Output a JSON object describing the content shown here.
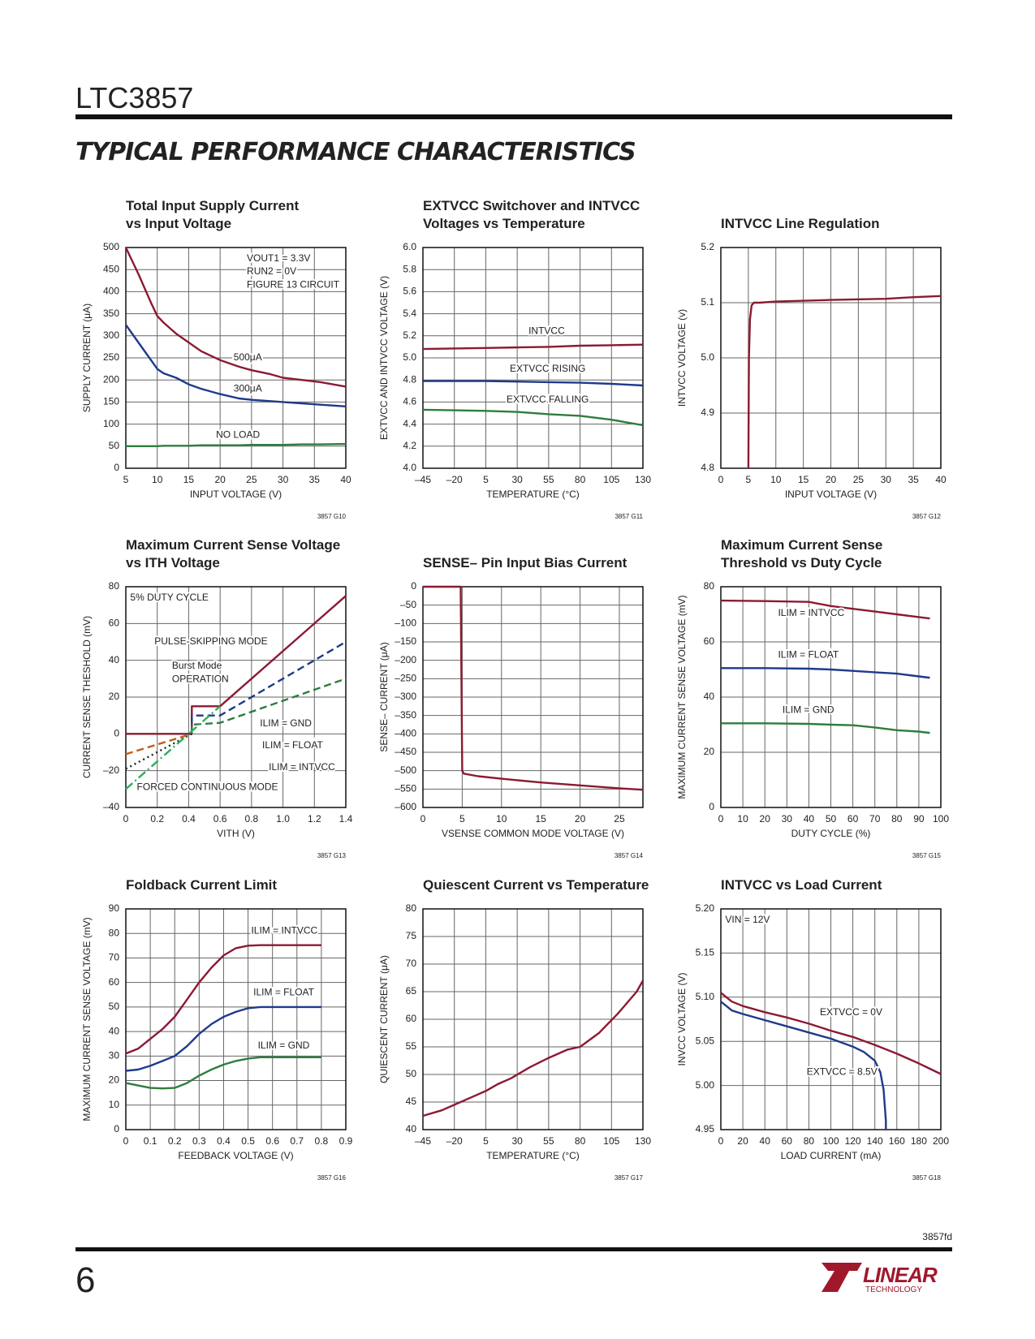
{
  "header": {
    "part": "LTC3857",
    "section": "TYPICAL PERFORMANCE CHARACTERISTICS"
  },
  "chart_data": [
    {
      "type": "line",
      "title": [
        "Total Input Supply Current",
        "vs Input Voltage"
      ],
      "xlabel": "INPUT VOLTAGE (V)",
      "ylabel": "SUPPLY CURRENT (μA)",
      "code": "3857 G10",
      "xlim": [
        5,
        40
      ],
      "xticks": [
        5,
        10,
        15,
        20,
        25,
        30,
        35,
        40
      ],
      "ylim": [
        0,
        500
      ],
      "yticks": [
        0,
        50,
        100,
        150,
        200,
        250,
        300,
        350,
        400,
        450,
        500
      ],
      "grid": true,
      "notes": [
        "VOUT1 = 3.3V",
        "RUN2 = 0V",
        "FIGURE 13 CIRCUIT"
      ],
      "x": [
        5,
        7,
        9,
        10,
        11,
        13,
        15,
        17,
        20,
        23,
        25,
        28,
        30,
        33,
        36,
        40
      ],
      "series": [
        {
          "name": "500μA",
          "color": "#8b1a33",
          "values": [
            500,
            440,
            375,
            345,
            330,
            305,
            285,
            265,
            245,
            230,
            222,
            213,
            205,
            200,
            195,
            185
          ]
        },
        {
          "name": "300μA",
          "color": "#1e3a8a",
          "values": [
            325,
            285,
            245,
            225,
            215,
            205,
            190,
            180,
            168,
            158,
            155,
            152,
            150,
            147,
            144,
            140
          ]
        },
        {
          "name": "NO LOAD",
          "color": "#2e7d3e",
          "values": [
            50,
            50,
            50,
            50,
            51,
            51,
            51,
            52,
            52,
            52,
            53,
            53,
            53,
            54,
            54,
            55
          ]
        }
      ]
    },
    {
      "type": "line",
      "title": [
        "EXTVCC Switchover and INTVCC",
        "Voltages vs Temperature"
      ],
      "xlabel": "TEMPERATURE (°C)",
      "ylabel": "EXTVCC AND INTVCC VOLTAGE (V)",
      "code": "3857 G11",
      "xlim": [
        -45,
        130
      ],
      "xticks": [
        {
          "value": -45,
          "label": "–45"
        },
        {
          "value": -20,
          "label": "–20"
        },
        5,
        30,
        55,
        80,
        105,
        130
      ],
      "ylim": [
        4,
        6
      ],
      "yticks": [
        {
          "value": 4,
          "label": "4.0"
        },
        4.2,
        4.4,
        4.6,
        4.8,
        {
          "value": 5,
          "label": "5.0"
        },
        5.2,
        5.4,
        5.6,
        5.8,
        {
          "value": 6,
          "label": "6.0"
        }
      ],
      "grid": true,
      "x": [
        -45,
        -20,
        5,
        30,
        55,
        80,
        105,
        130
      ],
      "series": [
        {
          "name": "INTVCC",
          "color": "#8b1a33",
          "values": [
            5.08,
            5.085,
            5.09,
            5.095,
            5.1,
            5.11,
            5.115,
            5.12
          ]
        },
        {
          "name": "EXTVCC RISING",
          "color": "#1e3a8a",
          "values": [
            4.79,
            4.79,
            4.79,
            4.785,
            4.78,
            4.775,
            4.765,
            4.75
          ]
        },
        {
          "name": "EXTVCC FALLING",
          "color": "#2e7d3e",
          "values": [
            4.53,
            4.525,
            4.52,
            4.51,
            4.49,
            4.475,
            4.44,
            4.39
          ]
        }
      ]
    },
    {
      "type": "line",
      "title": [
        "INTVCC Line Regulation"
      ],
      "xlabel": "INPUT VOLTAGE (V)",
      "ylabel": "INTVCC VOLTAGE (v)",
      "code": "3857 G12",
      "xlim": [
        0,
        40
      ],
      "xticks": [
        0,
        5,
        10,
        15,
        20,
        25,
        30,
        35,
        40
      ],
      "ylim": [
        4.8,
        5.2
      ],
      "yticks": [
        4.8,
        4.9,
        {
          "value": 5,
          "label": "5.0"
        },
        5.1,
        5.2
      ],
      "grid": true,
      "x": [
        5,
        5.1,
        5.3,
        5.6,
        6,
        7,
        10,
        20,
        30,
        35,
        40
      ],
      "series": [
        {
          "color": "#8b1a33",
          "values": [
            4.8,
            5.0,
            5.07,
            5.095,
            5.1,
            5.1,
            5.102,
            5.105,
            5.107,
            5.11,
            5.112
          ]
        }
      ]
    },
    {
      "type": "line",
      "title": [
        "Maximum Current Sense Voltage",
        "vs ITH Voltage"
      ],
      "xlabel": "VITH (V)",
      "ylabel": "CURRENT SENSE THESHOLD (mV)",
      "code": "3857 G13",
      "xlim": [
        0,
        1.4
      ],
      "xticks": [
        0,
        0.2,
        0.4,
        0.6,
        0.8,
        {
          "value": 1,
          "label": "1.0"
        },
        1.2,
        1.4
      ],
      "ylim": [
        -40,
        80
      ],
      "yticks": [
        {
          "value": -40,
          "label": "–40"
        },
        {
          "value": -20,
          "label": "–20"
        },
        0,
        20,
        40,
        60,
        80
      ],
      "grid": true,
      "notes": [
        "5% DUTY CYCLE",
        "PULSE-SKIPPING MODE",
        "Burst Mode",
        "OPERATION",
        "FORCED CONTINUOUS MODE"
      ],
      "series": [
        {
          "name": "ILIM = INTVCC",
          "color": "#8b1a33",
          "x": [
            0,
            0.42,
            0.42,
            0.6,
            1.4
          ],
          "values": [
            0,
            0,
            15,
            15,
            75
          ]
        },
        {
          "name": "ILIM = FLOAT",
          "color": "#1e3a8a",
          "dash": "dashed",
          "x": [
            0.42,
            0.42,
            0.6,
            1.4
          ],
          "values": [
            0,
            10,
            10,
            50
          ]
        },
        {
          "name": "ILIM = GND",
          "color": "#2e7d3e",
          "dash": "dashed",
          "x": [
            0.42,
            0.42,
            0.6,
            1.4
          ],
          "values": [
            0,
            5,
            6,
            30
          ]
        },
        {
          "color": "#c0601a",
          "dash": "dashed",
          "x": [
            0,
            0.42
          ],
          "values": [
            -11,
            0
          ]
        },
        {
          "color": "#222222",
          "dash": "dotted",
          "x": [
            0,
            0.42
          ],
          "values": [
            -19,
            0
          ]
        },
        {
          "color": "#2eae5e",
          "dash": "dashdot",
          "x": [
            0,
            0.6
          ],
          "values": [
            -30,
            15
          ]
        }
      ]
    },
    {
      "type": "line",
      "title": [
        "SENSE– Pin Input Bias Current"
      ],
      "xlabel": "VSENSE COMMON MODE VOLTAGE (V)",
      "ylabel": "SENSE– CURRENT (μA)",
      "code": "3857 G14",
      "xlim": [
        0,
        28
      ],
      "xticks": [
        0,
        5,
        10,
        15,
        20,
        25
      ],
      "ylim": [
        -600,
        0
      ],
      "yticks": [
        0,
        {
          "value": -50,
          "label": "–50"
        },
        {
          "value": -100,
          "label": "–100"
        },
        {
          "value": -150,
          "label": "–150"
        },
        {
          "value": -200,
          "label": "–200"
        },
        {
          "value": -250,
          "label": "–250"
        },
        {
          "value": -300,
          "label": "–300"
        },
        {
          "value": -350,
          "label": "–350"
        },
        {
          "value": -400,
          "label": "–400"
        },
        {
          "value": -450,
          "label": "–450"
        },
        {
          "value": -500,
          "label": "–500"
        },
        {
          "value": -550,
          "label": "–550"
        },
        {
          "value": -600,
          "label": "–600"
        }
      ],
      "grid": true,
      "x": [
        0,
        4.8,
        5,
        5.2,
        7,
        10,
        15,
        20,
        25,
        28
      ],
      "series": [
        {
          "color": "#8b1a33",
          "values": [
            0,
            0,
            -500,
            -508,
            -515,
            -522,
            -532,
            -540,
            -548,
            -552
          ]
        }
      ]
    },
    {
      "type": "line",
      "title": [
        "Maximum Current Sense",
        "Threshold vs Duty Cycle"
      ],
      "xlabel": "DUTY CYCLE (%)",
      "ylabel": "MAXIMUM CURRENT SENSE VOLTAGE (mV)",
      "code": "3857 G15",
      "xlim": [
        0,
        100
      ],
      "xticks": [
        0,
        10,
        20,
        30,
        40,
        50,
        60,
        70,
        80,
        90,
        100
      ],
      "ylim": [
        0,
        80
      ],
      "yticks": [
        0,
        20,
        40,
        60,
        80
      ],
      "grid": true,
      "x": [
        0,
        20,
        40,
        50,
        60,
        70,
        80,
        90,
        95
      ],
      "series": [
        {
          "name": "ILIM = INTVCC",
          "color": "#8b1a33",
          "values": [
            75,
            74.8,
            74.5,
            73,
            72,
            71,
            70,
            69,
            68.5
          ]
        },
        {
          "name": "ILIM = FLOAT",
          "color": "#1e3a8a",
          "values": [
            50.5,
            50.5,
            50.3,
            50,
            49.5,
            49,
            48.5,
            47.5,
            47
          ]
        },
        {
          "name": "ILIM = GND",
          "color": "#2e7d3e",
          "values": [
            30.5,
            30.5,
            30.3,
            30,
            29.8,
            29,
            28,
            27.5,
            27
          ]
        }
      ]
    },
    {
      "type": "line",
      "title": [
        "Foldback Current Limit"
      ],
      "xlabel": "FEEDBACK VOLTAGE (V)",
      "ylabel": "MAXIMUM CURRENT SENSE VOLTAGE (mV)",
      "code": "3857 G16",
      "xlim": [
        0,
        0.9
      ],
      "xticks": [
        0,
        0.1,
        0.2,
        0.3,
        0.4,
        0.5,
        0.6,
        0.7,
        0.8,
        0.9
      ],
      "ylim": [
        0,
        90
      ],
      "yticks": [
        0,
        10,
        20,
        30,
        40,
        50,
        60,
        70,
        80,
        90
      ],
      "grid": true,
      "x": [
        0,
        0.05,
        0.1,
        0.15,
        0.2,
        0.25,
        0.3,
        0.35,
        0.4,
        0.45,
        0.5,
        0.55,
        0.6,
        0.7,
        0.8
      ],
      "series": [
        {
          "name": "ILIM = INTVCC",
          "color": "#8b1a33",
          "values": [
            31,
            33,
            37,
            41,
            46,
            53,
            60,
            66,
            71,
            74,
            75,
            75.2,
            75.2,
            75.2,
            75.2
          ]
        },
        {
          "name": "ILIM = FLOAT",
          "color": "#1e3a8a",
          "values": [
            24,
            24.5,
            26,
            28,
            30,
            34,
            39,
            43,
            46,
            48,
            49.5,
            50,
            50,
            50,
            50
          ]
        },
        {
          "name": "ILIM = GND",
          "color": "#2e7d3e",
          "values": [
            19,
            18,
            17,
            16.8,
            17,
            19,
            22,
            24.5,
            26.5,
            28,
            29,
            29.5,
            29.5,
            29.5,
            29.5
          ]
        }
      ]
    },
    {
      "type": "line",
      "title": [
        "Quiescent Current vs Temperature"
      ],
      "xlabel": "TEMPERATURE (°C)",
      "ylabel": "QUIESCENT CURRENT (μA)",
      "code": "3857 G17",
      "xlim": [
        -45,
        130
      ],
      "xticks": [
        {
          "value": -45,
          "label": "–45"
        },
        {
          "value": -20,
          "label": "–20"
        },
        5,
        30,
        55,
        80,
        105,
        130
      ],
      "ylim": [
        40,
        80
      ],
      "yticks": [
        40,
        45,
        50,
        55,
        60,
        65,
        70,
        75,
        80
      ],
      "grid": true,
      "x": [
        -45,
        -30,
        -20,
        -5,
        5,
        15,
        25,
        40,
        55,
        70,
        80,
        95,
        110,
        125,
        130
      ],
      "series": [
        {
          "color": "#8b1a33",
          "values": [
            42.5,
            43.5,
            44.5,
            46,
            47,
            48.3,
            49.3,
            51.3,
            53,
            54.5,
            55,
            57.5,
            61,
            65,
            67
          ]
        }
      ]
    },
    {
      "type": "line",
      "title": [
        "INTVCC vs Load Current"
      ],
      "xlabel": "LOAD CURRENT (mA)",
      "ylabel": "INVCC VOLTAGE (V)",
      "code": "3857 G18",
      "xlim": [
        0,
        200
      ],
      "xticks": [
        0,
        20,
        40,
        60,
        80,
        100,
        120,
        140,
        160,
        180,
        200
      ],
      "ylim": [
        4.95,
        5.2
      ],
      "yticks": [
        4.95,
        {
          "value": 5,
          "label": "5.00"
        },
        5.05,
        {
          "value": 5.1,
          "label": "5.10"
        },
        5.15,
        {
          "value": 5.2,
          "label": "5.20"
        }
      ],
      "grid": true,
      "notes": [
        "VIN = 12V"
      ],
      "series": [
        {
          "name": "EXTVCC = 0V",
          "color": "#8b1a33",
          "x": [
            0,
            10,
            20,
            40,
            60,
            80,
            100,
            120,
            140,
            160,
            180,
            200
          ],
          "values": [
            5.105,
            5.095,
            5.09,
            5.083,
            5.077,
            5.07,
            5.062,
            5.055,
            5.046,
            5.036,
            5.025,
            5.013
          ]
        },
        {
          "name": "EXTVCC = 8.5V",
          "color": "#1e3a8a",
          "x": [
            0,
            10,
            20,
            40,
            60,
            80,
            100,
            120,
            130,
            140,
            145,
            148,
            150,
            150
          ],
          "values": [
            5.095,
            5.085,
            5.081,
            5.074,
            5.067,
            5.06,
            5.053,
            5.044,
            5.038,
            5.028,
            5.015,
            4.995,
            4.96,
            4.95
          ]
        }
      ]
    }
  ],
  "footer": {
    "page": "6",
    "doc": "3857fd",
    "logo": "LINEAR",
    "logo_sub": "TECHNOLOGY"
  }
}
